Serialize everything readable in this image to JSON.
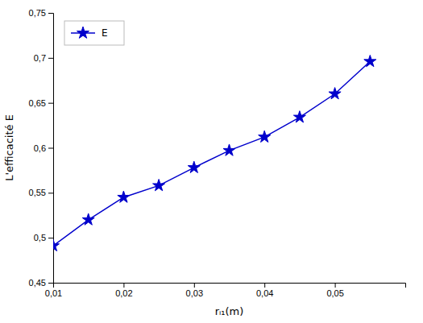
{
  "chart_data": {
    "type": "line",
    "x_label": "rᵢ₁(m)",
    "y_label": "L'efficacité E",
    "x": [
      0.01,
      0.015,
      0.02,
      0.025,
      0.03,
      0.035,
      0.04,
      0.045,
      0.05,
      0.055
    ],
    "series": [
      {
        "name": "E",
        "color": "#0000cc",
        "marker": "star",
        "values": [
          0.491,
          0.52,
          0.545,
          0.558,
          0.578,
          0.597,
          0.612,
          0.634,
          0.66,
          0.696
        ]
      }
    ],
    "xlim": [
      0.01,
      0.06
    ],
    "ylim": [
      0.45,
      0.75
    ],
    "xticks": [
      {
        "value": 0.01,
        "label": "0,01"
      },
      {
        "value": 0.02,
        "label": "0,02"
      },
      {
        "value": 0.03,
        "label": "0,03"
      },
      {
        "value": 0.04,
        "label": "0,04"
      },
      {
        "value": 0.05,
        "label": "0,05"
      }
    ],
    "yticks": [
      {
        "value": 0.45,
        "label": "0,45"
      },
      {
        "value": 0.5,
        "label": "0,5"
      },
      {
        "value": 0.55,
        "label": "0,55"
      },
      {
        "value": 0.6,
        "label": "0,6"
      },
      {
        "value": 0.65,
        "label": "0,65"
      },
      {
        "value": 0.7,
        "label": "0,7"
      },
      {
        "value": 0.75,
        "label": "0,75"
      }
    ],
    "grid": false,
    "legend": "upper left"
  }
}
